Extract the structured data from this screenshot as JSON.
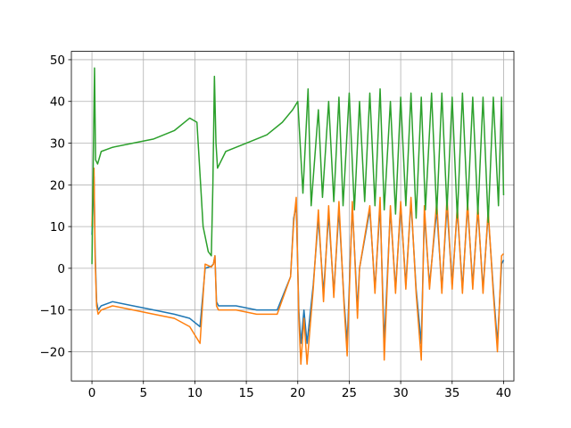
{
  "chart_data": {
    "type": "line",
    "title": "",
    "xlabel": "",
    "ylabel": "",
    "xlim": [
      -2,
      41
    ],
    "ylim": [
      -27,
      52
    ],
    "xticks": [
      0,
      5,
      10,
      15,
      20,
      25,
      30,
      35,
      40
    ],
    "yticks": [
      -20,
      -10,
      0,
      10,
      20,
      30,
      40,
      50
    ],
    "xtick_labels": [
      "0",
      "5",
      "10",
      "15",
      "20",
      "25",
      "30",
      "35",
      "40"
    ],
    "ytick_labels": [
      "−20",
      "−10",
      "0",
      "10",
      "20",
      "30",
      "40",
      "50"
    ],
    "grid": true,
    "legend": "none",
    "series": [
      {
        "color": "#1f77b4",
        "x": [
          0,
          0.1,
          0.2,
          0.3,
          0.45,
          0.6,
          0.9,
          2.0,
          4.0,
          6.0,
          8.0,
          9.5,
          10.5,
          11.0,
          11.6,
          11.8,
          11.95,
          12.1,
          12.3,
          14,
          16,
          18,
          19.3,
          19.6,
          19.85,
          20.1,
          20.3,
          20.6,
          20.9,
          21.5,
          22,
          22.5,
          23,
          23.5,
          24,
          24.5,
          24.8,
          25.3,
          25.8,
          26,
          27,
          27.5,
          28.0,
          28.4,
          29,
          29.5,
          30,
          30.5,
          31,
          31.5,
          32,
          32.3,
          32.8,
          33.5,
          34,
          34.5,
          35,
          35.5,
          36,
          36.5,
          37,
          37.5,
          38,
          38.5,
          39,
          39.4,
          39.8,
          40.0
        ],
        "y": [
          8,
          15,
          22,
          5,
          -8,
          -10,
          -9,
          -8,
          -9,
          -10,
          -11,
          -12,
          -14,
          0,
          0.5,
          1,
          3,
          -8,
          -9,
          -9,
          -10,
          -10,
          -2,
          12,
          15,
          -10,
          -18,
          -10,
          -18,
          -4,
          12,
          -6,
          13,
          -6,
          14,
          -8,
          -18,
          15,
          -10,
          0,
          14,
          -5,
          15,
          -18,
          14,
          -5,
          15,
          -4,
          16,
          -5,
          -18,
          13,
          -4,
          14,
          -5,
          15,
          -4,
          14,
          -5,
          15,
          -4,
          14,
          -5,
          13,
          -5,
          -18,
          1,
          2
        ]
      },
      {
        "color": "#ff7f0e",
        "x": [
          0,
          0.1,
          0.2,
          0.3,
          0.45,
          0.6,
          0.9,
          2.0,
          4.0,
          6.0,
          8.0,
          9.5,
          10.5,
          11.0,
          11.6,
          11.8,
          11.95,
          12.1,
          12.3,
          14,
          16,
          18,
          19.3,
          19.6,
          19.85,
          20.1,
          20.3,
          20.6,
          20.9,
          21.5,
          22,
          22.5,
          23,
          23.5,
          24,
          24.5,
          24.8,
          25.3,
          25.8,
          26,
          27,
          27.5,
          28.0,
          28.4,
          29,
          29.5,
          30,
          30.5,
          31,
          31.5,
          32,
          32.3,
          32.8,
          33.5,
          34,
          34.5,
          35,
          35.5,
          36,
          36.5,
          37,
          37.5,
          38,
          38.5,
          39,
          39.4,
          39.8,
          40.0
        ],
        "y": [
          10,
          20,
          24,
          3,
          -9,
          -11,
          -10,
          -9,
          -10,
          -11,
          -12,
          -14,
          -18,
          1,
          0.3,
          1,
          3,
          -9,
          -10,
          -10,
          -11,
          -11,
          -2,
          11,
          17,
          -12,
          -23,
          -12,
          -23,
          -5,
          14,
          -8,
          15,
          -7,
          16,
          -9,
          -21,
          16,
          -12,
          0,
          15,
          -6,
          17,
          -22,
          15,
          -6,
          16,
          -5,
          17,
          -6,
          -22,
          15,
          -5,
          16,
          -6,
          17,
          -5,
          15,
          -6,
          16,
          -5,
          15,
          -6,
          14,
          -6,
          -20,
          3,
          3.5
        ]
      },
      {
        "color": "#2ca02c",
        "x": [
          0,
          0.15,
          0.25,
          0.35,
          0.55,
          0.9,
          2,
          4,
          6,
          8,
          9.5,
          10.2,
          10.8,
          11.3,
          11.6,
          11.75,
          11.9,
          12.05,
          12.2,
          12.4,
          13,
          15,
          17,
          18.5,
          19.5,
          20,
          20.5,
          21,
          21.3,
          22,
          22.4,
          23,
          23.5,
          24,
          24.4,
          25,
          25.5,
          26,
          26.5,
          27,
          27.5,
          28,
          28.4,
          29,
          29.5,
          30,
          30.5,
          31,
          31.5,
          32,
          32.4,
          33,
          33.5,
          34,
          34.5,
          35,
          35.5,
          36,
          36.5,
          37,
          37.5,
          38,
          38.5,
          39,
          39.5,
          39.8,
          40
        ],
        "y": [
          1,
          30,
          48,
          26,
          25,
          28,
          29,
          30,
          31,
          33,
          36,
          35,
          10,
          4,
          3,
          20,
          46,
          30,
          24,
          25,
          28,
          30,
          32,
          35,
          38,
          40,
          18,
          43,
          15,
          38,
          17,
          40,
          16,
          41,
          15,
          42,
          14,
          40,
          16,
          42,
          15,
          43,
          14,
          40,
          13,
          41,
          15,
          42,
          12,
          41,
          14,
          42,
          13,
          42,
          14,
          41,
          12,
          42,
          14,
          41,
          13,
          41,
          11,
          41,
          15,
          41,
          17.5
        ]
      }
    ]
  }
}
